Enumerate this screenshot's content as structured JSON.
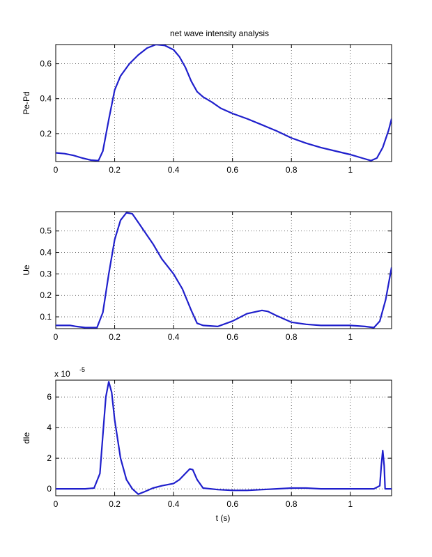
{
  "figure": {
    "background": "#ffffff",
    "line_color": "#1f1fcc",
    "grid_color": "#444444"
  },
  "chart_data": [
    {
      "type": "line",
      "title": "net wave intensity analysis",
      "xlabel": "",
      "ylabel": "Pe-Pd",
      "xlim": [
        0,
        1.14
      ],
      "ylim": [
        0.04,
        0.71
      ],
      "grid": true,
      "xticks": [
        0,
        0.2,
        0.4,
        0.6,
        0.8,
        1
      ],
      "xtick_labels": [
        "0",
        "0.2",
        "0.4",
        "0.6",
        "0.8",
        "1"
      ],
      "yticks": [
        0.2,
        0.4,
        0.6
      ],
      "ytick_labels": [
        "0.2",
        "0.4",
        "0.6"
      ],
      "exponent_label": "",
      "series": [
        {
          "name": "",
          "color": "#1f1fcc",
          "x": [
            0,
            0.03,
            0.06,
            0.09,
            0.12,
            0.145,
            0.16,
            0.18,
            0.2,
            0.22,
            0.25,
            0.28,
            0.31,
            0.34,
            0.37,
            0.4,
            0.42,
            0.44,
            0.46,
            0.48,
            0.5,
            0.53,
            0.56,
            0.6,
            0.65,
            0.7,
            0.75,
            0.8,
            0.85,
            0.9,
            0.95,
            1.0,
            1.04,
            1.07,
            1.09,
            1.11,
            1.13,
            1.14
          ],
          "y": [
            0.09,
            0.085,
            0.075,
            0.06,
            0.048,
            0.045,
            0.1,
            0.28,
            0.45,
            0.53,
            0.6,
            0.65,
            0.69,
            0.71,
            0.705,
            0.68,
            0.64,
            0.58,
            0.5,
            0.44,
            0.41,
            0.38,
            0.345,
            0.315,
            0.285,
            0.25,
            0.215,
            0.175,
            0.145,
            0.12,
            0.1,
            0.08,
            0.06,
            0.045,
            0.06,
            0.12,
            0.22,
            0.285
          ]
        }
      ]
    },
    {
      "type": "line",
      "title": "",
      "xlabel": "",
      "ylabel": "Ue",
      "xlim": [
        0,
        1.14
      ],
      "ylim": [
        0.045,
        0.59
      ],
      "grid": true,
      "xticks": [
        0,
        0.2,
        0.4,
        0.6,
        0.8,
        1
      ],
      "xtick_labels": [
        "0",
        "0.2",
        "0.4",
        "0.6",
        "0.8",
        "1"
      ],
      "yticks": [
        0.1,
        0.2,
        0.3,
        0.4,
        0.5
      ],
      "ytick_labels": [
        "0.1",
        "0.2",
        "0.3",
        "0.4",
        "0.5"
      ],
      "exponent_label": "",
      "series": [
        {
          "name": "",
          "color": "#1f1fcc",
          "x": [
            0,
            0.05,
            0.07,
            0.1,
            0.14,
            0.16,
            0.18,
            0.2,
            0.22,
            0.24,
            0.26,
            0.28,
            0.3,
            0.33,
            0.36,
            0.4,
            0.43,
            0.46,
            0.48,
            0.5,
            0.55,
            0.6,
            0.65,
            0.7,
            0.72,
            0.75,
            0.8,
            0.85,
            0.9,
            0.95,
            1.0,
            1.05,
            1.08,
            1.1,
            1.12,
            1.14
          ],
          "y": [
            0.06,
            0.06,
            0.055,
            0.05,
            0.05,
            0.12,
            0.3,
            0.46,
            0.55,
            0.585,
            0.58,
            0.54,
            0.5,
            0.44,
            0.37,
            0.3,
            0.23,
            0.13,
            0.07,
            0.06,
            0.055,
            0.08,
            0.115,
            0.13,
            0.125,
            0.105,
            0.075,
            0.065,
            0.06,
            0.06,
            0.06,
            0.055,
            0.05,
            0.08,
            0.18,
            0.33
          ]
        }
      ]
    },
    {
      "type": "line",
      "title": "",
      "xlabel": "t (s)",
      "ylabel": "dIe",
      "xlim": [
        0,
        1.14
      ],
      "ylim": [
        -0.45,
        7.1
      ],
      "grid": true,
      "xticks": [
        0,
        0.2,
        0.4,
        0.6,
        0.8,
        1
      ],
      "xtick_labels": [
        "0",
        "0.2",
        "0.4",
        "0.6",
        "0.8",
        "1"
      ],
      "yticks": [
        0,
        2,
        4,
        6
      ],
      "ytick_labels": [
        "0",
        "2",
        "4",
        "6"
      ],
      "exponent_label": "x 10",
      "exponent_power": "-5",
      "series": [
        {
          "name": "",
          "color": "#1f1fcc",
          "x": [
            0,
            0.1,
            0.13,
            0.15,
            0.16,
            0.17,
            0.18,
            0.19,
            0.2,
            0.22,
            0.24,
            0.26,
            0.28,
            0.3,
            0.33,
            0.36,
            0.4,
            0.42,
            0.44,
            0.455,
            0.465,
            0.48,
            0.5,
            0.55,
            0.6,
            0.65,
            0.7,
            0.75,
            0.8,
            0.85,
            0.9,
            0.95,
            1.0,
            1.05,
            1.08,
            1.1,
            1.105,
            1.11,
            1.115,
            1.118,
            1.12,
            1.14
          ],
          "y": [
            0,
            0,
            0.05,
            1.0,
            3.5,
            6.0,
            7.0,
            6.3,
            4.5,
            2.0,
            0.6,
            0.0,
            -0.35,
            -0.2,
            0.05,
            0.2,
            0.35,
            0.6,
            1.0,
            1.3,
            1.25,
            0.6,
            0.05,
            -0.05,
            -0.1,
            -0.1,
            -0.05,
            0.0,
            0.05,
            0.05,
            0.0,
            0.0,
            0.0,
            0.0,
            0.0,
            0.2,
            1.5,
            2.5,
            1.5,
            0.0,
            0.0,
            0.0
          ]
        }
      ]
    }
  ]
}
